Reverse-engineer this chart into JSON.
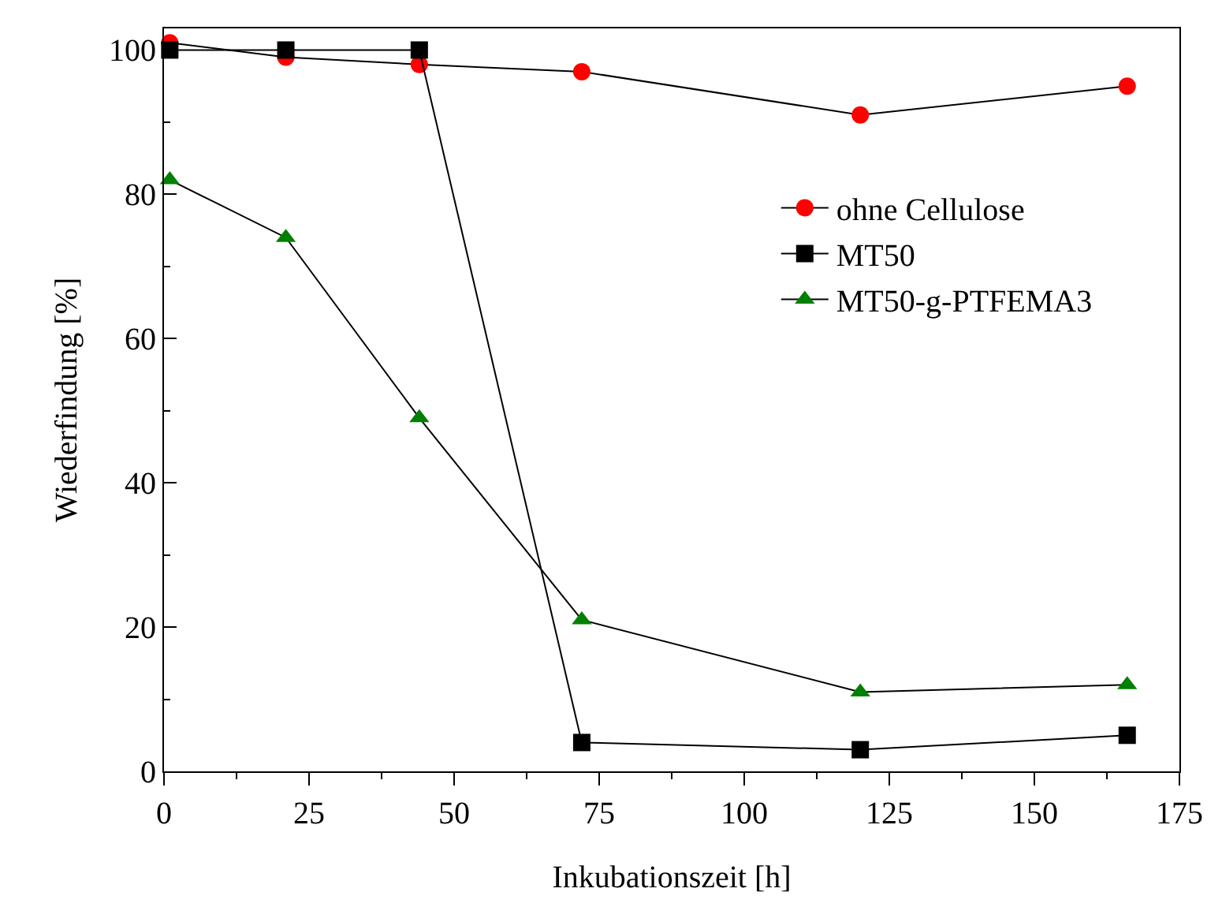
{
  "chart_data": {
    "type": "line",
    "xlabel": "Inkubationszeit [h]",
    "ylabel": "Wiederfindung [%]",
    "x": [
      1,
      21,
      44,
      72,
      120,
      166
    ],
    "series": [
      {
        "name": "ohne Cellulose",
        "color": "#ff0000",
        "marker": "circle",
        "values": [
          101,
          99,
          98,
          97,
          91,
          95
        ]
      },
      {
        "name": "MT50",
        "color": "#000000",
        "marker": "square",
        "values": [
          100,
          100,
          100,
          4,
          3,
          5
        ]
      },
      {
        "name": "MT50-g-PTFEMA3",
        "color": "#008000",
        "marker": "triangle",
        "values": [
          82,
          74,
          49,
          21,
          11,
          12
        ]
      }
    ],
    "xlim": [
      0,
      175
    ],
    "xticks": [
      0,
      25,
      50,
      75,
      100,
      125,
      150,
      175
    ],
    "ylim": [
      0,
      103
    ],
    "yticks": [
      0,
      20,
      40,
      60,
      80,
      100
    ],
    "grid": false,
    "legend": "top right",
    "line_style": "solid"
  }
}
